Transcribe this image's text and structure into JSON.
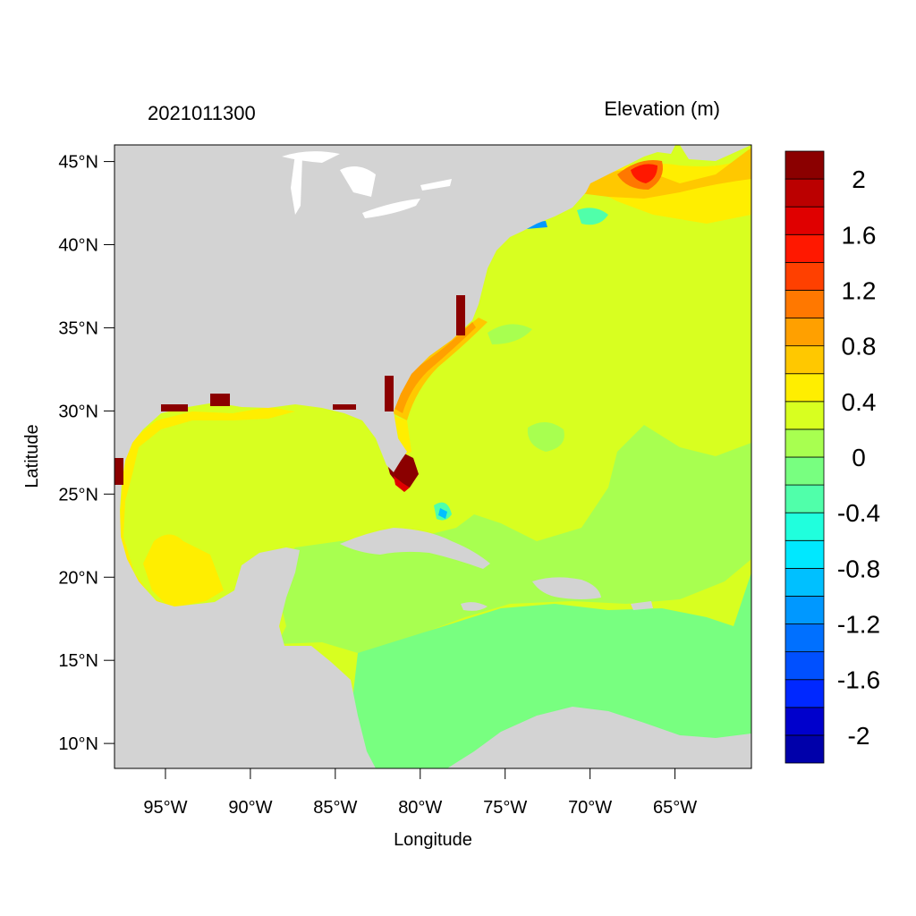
{
  "map": {
    "title_left": "2021011300",
    "title_right": "Elevation (m)",
    "xlabel": "Longitude",
    "ylabel": "Latitude",
    "lon_range": [
      -98,
      -60.5
    ],
    "lat_range": [
      8.5,
      46
    ],
    "lat_ticks": [
      {
        "value": 45,
        "label": "45°N"
      },
      {
        "value": 40,
        "label": "40°N"
      },
      {
        "value": 35,
        "label": "35°N"
      },
      {
        "value": 30,
        "label": "30°N"
      },
      {
        "value": 25,
        "label": "25°N"
      },
      {
        "value": 20,
        "label": "20°N"
      },
      {
        "value": 15,
        "label": "15°N"
      },
      {
        "value": 10,
        "label": "10°N"
      }
    ],
    "lon_ticks": [
      {
        "value": -95,
        "label": "95°W"
      },
      {
        "value": -90,
        "label": "90°W"
      },
      {
        "value": -85,
        "label": "85°W"
      },
      {
        "value": -80,
        "label": "80°W"
      },
      {
        "value": -75,
        "label": "75°W"
      },
      {
        "value": -70,
        "label": "70°W"
      },
      {
        "value": -65,
        "label": "65°W"
      }
    ],
    "land_color": "#d3d3d3",
    "regions": [
      {
        "name": "north-atlantic",
        "level": 0.2,
        "color": "#d8ff20"
      },
      {
        "name": "gulf-of-mexico",
        "level": 0.2,
        "color": "#d8ff20"
      },
      {
        "name": "south-atlantic",
        "level": 0.0,
        "color": "#a8ff50"
      },
      {
        "name": "western-caribbean",
        "level": 0.0,
        "color": "#a8ff50"
      },
      {
        "name": "eastern-caribbean",
        "level": -0.2,
        "color": "#78ff80"
      },
      {
        "name": "bay-of-campeche",
        "level": 0.4,
        "color": "#ffee00"
      },
      {
        "name": "gulf-of-maine",
        "level": 0.6,
        "color": "#ffc800"
      },
      {
        "name": "bay-of-fundy",
        "level": 1.0,
        "color": "#ff6400"
      },
      {
        "name": "southeast-us-shelf",
        "level": 0.8,
        "color": "#ffa000"
      },
      {
        "name": "south-florida",
        "level": 2.2,
        "color": "#8b0000"
      }
    ]
  },
  "colorbar": {
    "levels": [
      -2.2,
      -2.0,
      -1.8,
      -1.6,
      -1.4,
      -1.2,
      -1.0,
      -0.8,
      -0.6,
      -0.4,
      -0.2,
      0,
      0.2,
      0.4,
      0.6,
      0.8,
      1.0,
      1.2,
      1.4,
      1.6,
      1.8,
      2.0,
      2.2
    ],
    "colors": [
      "#0000aa",
      "#0000cc",
      "#0028ff",
      "#0050ff",
      "#0070ff",
      "#0098ff",
      "#00c0ff",
      "#00e8ff",
      "#20ffdd",
      "#50ffaa",
      "#78ff80",
      "#a8ff50",
      "#d8ff20",
      "#ffee00",
      "#ffc800",
      "#ffa000",
      "#ff7800",
      "#ff4000",
      "#ff1800",
      "#e00000",
      "#bb0000",
      "#8b0000"
    ],
    "tick_labels": [
      {
        "value": 2,
        "label": "2"
      },
      {
        "value": 1.6,
        "label": "1.6"
      },
      {
        "value": 1.2,
        "label": "1.2"
      },
      {
        "value": 0.8,
        "label": "0.8"
      },
      {
        "value": 0.4,
        "label": "0.4"
      },
      {
        "value": 0,
        "label": "0"
      },
      {
        "value": -0.4,
        "label": "-0.4"
      },
      {
        "value": -0.8,
        "label": "-0.8"
      },
      {
        "value": -1.2,
        "label": "-1.2"
      },
      {
        "value": -1.6,
        "label": "-1.6"
      },
      {
        "value": -2,
        "label": "-2"
      }
    ]
  }
}
